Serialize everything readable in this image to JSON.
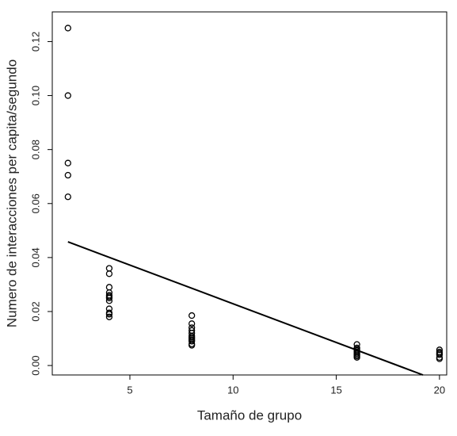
{
  "chart_data": {
    "type": "scatter",
    "x_label": "Tamaño de grupo",
    "y_label": "Numero de interacciones per capita/segundo",
    "x": [
      2,
      2,
      2,
      2,
      2,
      4,
      4,
      4,
      4,
      4,
      4,
      4,
      4,
      4,
      4,
      4,
      4,
      8,
      8,
      8,
      8,
      8,
      8,
      8,
      8,
      8,
      8,
      8,
      8,
      16,
      16,
      16,
      16,
      16,
      16,
      16,
      16,
      16,
      20,
      20,
      20,
      20,
      20,
      20
    ],
    "values": [
      0.125,
      0.1,
      0.075,
      0.0705,
      0.0625,
      0.036,
      0.034,
      0.029,
      0.027,
      0.026,
      0.0255,
      0.025,
      0.024,
      0.021,
      0.0195,
      0.019,
      0.018,
      0.0185,
      0.0155,
      0.014,
      0.013,
      0.012,
      0.011,
      0.0105,
      0.01,
      0.0095,
      0.009,
      0.008,
      0.0075,
      0.0078,
      0.0065,
      0.006,
      0.0055,
      0.005,
      0.0045,
      0.004,
      0.0035,
      0.003,
      0.0058,
      0.005,
      0.0045,
      0.004,
      0.003,
      0.0025
    ],
    "color": "#000000",
    "trend_line": {
      "x": [
        2,
        19.2
      ],
      "y": [
        0.0458,
        -0.0035
      ]
    },
    "xlim": [
      1.24,
      20.35
    ],
    "ylim": [
      -0.0035,
      0.131
    ],
    "xticks": [
      5,
      10,
      15,
      20
    ],
    "yticks": [
      {
        "value": 0,
        "label": "0.00"
      },
      {
        "value": 0.02,
        "label": "0.02"
      },
      {
        "value": 0.04,
        "label": "0.04"
      },
      {
        "value": 0.06,
        "label": "0.06"
      },
      {
        "value": 0.08,
        "label": "0.08"
      },
      {
        "value": 0.1,
        "label": "0.10"
      },
      {
        "value": 0.12,
        "label": "0.12"
      }
    ]
  }
}
